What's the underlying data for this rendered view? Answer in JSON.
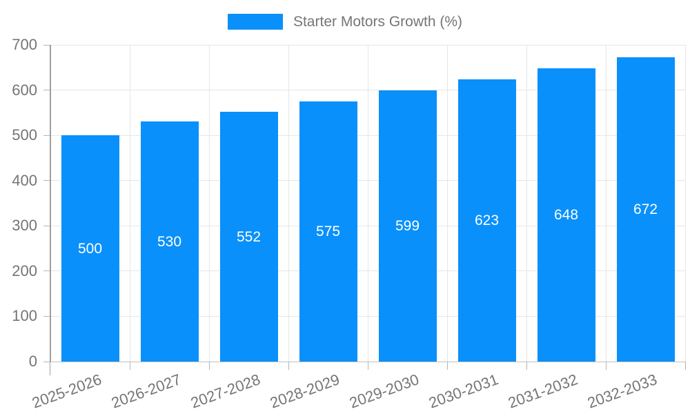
{
  "legend": {
    "label": "Starter Motors Growth (%)"
  },
  "chart_data": {
    "type": "bar",
    "title": "",
    "series_name": "Starter Motors Growth (%)",
    "categories": [
      "2025-2026",
      "2026-2027",
      "2027-2028",
      "2028-2029",
      "2029-2030",
      "2030-2031",
      "2031-2032",
      "2032-2033"
    ],
    "values": [
      500,
      530,
      552,
      575,
      599,
      623,
      648,
      672
    ],
    "yticks": [
      0,
      100,
      200,
      300,
      400,
      500,
      600,
      700
    ],
    "ylim": [
      0,
      700
    ],
    "xlabel": "",
    "ylabel": "",
    "grid": true,
    "legend_position": "top",
    "x_label_rotation_deg": -20,
    "colors": {
      "bar": "#0a90fa",
      "value_label": "#ffffff",
      "axis_text": "#757575",
      "axis_line": "#9e9e9e",
      "gridline": "#e6e6e6",
      "baseline": "#c0c0c0",
      "tick": "#b5b5b5",
      "background": "#ffffff"
    }
  }
}
